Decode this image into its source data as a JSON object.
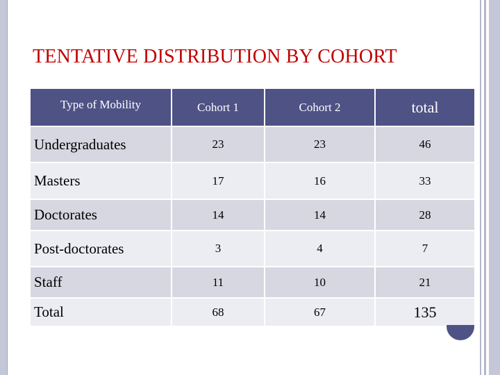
{
  "title": "TENTATIVE DISTRIBUTION BY COHORT",
  "table": {
    "headers": [
      "Type of Mobility",
      "Cohort 1",
      "Cohort 2",
      "total"
    ],
    "rows": [
      {
        "label": "Undergraduates",
        "c1": "23",
        "c2": "23",
        "total": "46"
      },
      {
        "label": "Masters",
        "c1": "17",
        "c2": "16",
        "total": "33"
      },
      {
        "label": "Doctorates",
        "c1": "14",
        "c2": "14",
        "total": "28"
      },
      {
        "label": "Post-doctorates",
        "c1": "3",
        "c2": "4",
        "total": "7"
      },
      {
        "label": "Staff",
        "c1": "11",
        "c2": "10",
        "total": "21"
      },
      {
        "label": "Total",
        "c1": "68",
        "c2": "67",
        "total": "135"
      }
    ]
  },
  "colors": {
    "title": "#c00000",
    "header_bg": "#4f5285",
    "row_bg": "#d6d7e1",
    "row_alt_bg": "#ecedf2",
    "total_text": "#1f5f8b"
  }
}
